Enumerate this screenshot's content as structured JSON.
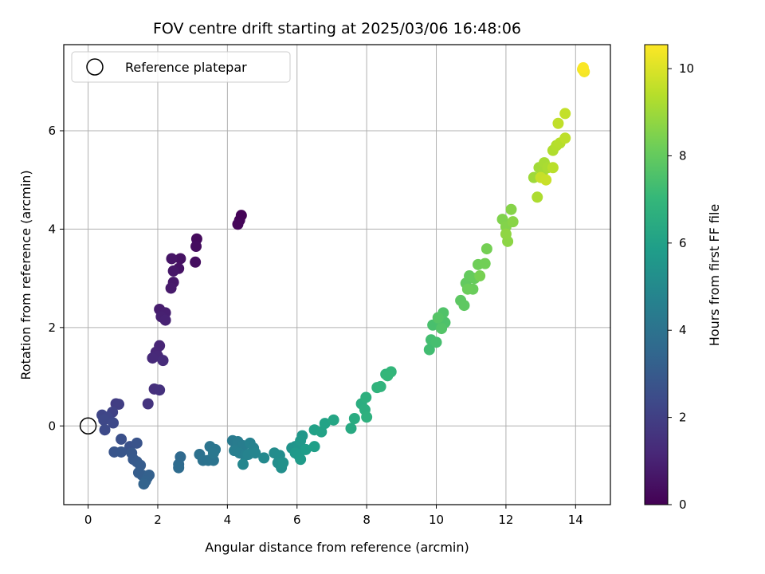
{
  "chart_data": {
    "type": "scatter",
    "title": "FOV centre drift starting at 2025/03/06 16:48:06",
    "xlabel": "Angular distance from reference (arcmin)",
    "ylabel": "Rotation from reference (arcmin)",
    "xlim": [
      -0.7,
      15.0
    ],
    "ylim": [
      -1.6,
      7.75
    ],
    "xticks": [
      0,
      2,
      4,
      6,
      8,
      10,
      12,
      14
    ],
    "yticks": [
      0,
      2,
      4,
      6
    ],
    "grid": true,
    "legend": {
      "placement": "top-left",
      "entries": [
        "Reference platepar"
      ]
    },
    "reference_point": {
      "x": 0,
      "y": 0,
      "label": "Reference platepar"
    },
    "colorbar": {
      "label": "Hours from first FF file",
      "range": [
        0,
        10.55
      ],
      "ticks": [
        0,
        2,
        4,
        6,
        8,
        10
      ],
      "colormap": "viridis"
    },
    "color_stops": [
      "#440154",
      "#482878",
      "#3e4989",
      "#31688e",
      "#26828e",
      "#1f9e89",
      "#35b779",
      "#6ece58",
      "#b5de2b",
      "#fde725"
    ],
    "points": [
      {
        "x": 4.4,
        "y": 4.28,
        "h": 0.05
      },
      {
        "x": 4.35,
        "y": 4.18,
        "h": 0.1
      },
      {
        "x": 4.3,
        "y": 4.1,
        "h": 0.15
      },
      {
        "x": 3.12,
        "y": 3.8,
        "h": 0.3
      },
      {
        "x": 3.1,
        "y": 3.65,
        "h": 0.35
      },
      {
        "x": 3.08,
        "y": 3.33,
        "h": 0.4
      },
      {
        "x": 2.65,
        "y": 3.4,
        "h": 0.5
      },
      {
        "x": 2.6,
        "y": 3.2,
        "h": 0.55
      },
      {
        "x": 2.4,
        "y": 3.4,
        "h": 0.6
      },
      {
        "x": 2.45,
        "y": 3.15,
        "h": 0.65
      },
      {
        "x": 2.45,
        "y": 2.92,
        "h": 0.7
      },
      {
        "x": 2.38,
        "y": 2.8,
        "h": 0.75
      },
      {
        "x": 2.05,
        "y": 2.37,
        "h": 0.85
      },
      {
        "x": 2.22,
        "y": 2.3,
        "h": 0.9
      },
      {
        "x": 2.1,
        "y": 2.22,
        "h": 0.95
      },
      {
        "x": 2.22,
        "y": 2.15,
        "h": 1.0
      },
      {
        "x": 2.05,
        "y": 1.63,
        "h": 1.1
      },
      {
        "x": 1.95,
        "y": 1.5,
        "h": 1.15
      },
      {
        "x": 2.0,
        "y": 1.42,
        "h": 1.2
      },
      {
        "x": 1.85,
        "y": 1.38,
        "h": 1.25
      },
      {
        "x": 2.15,
        "y": 1.33,
        "h": 1.3
      },
      {
        "x": 1.9,
        "y": 0.75,
        "h": 1.45
      },
      {
        "x": 2.05,
        "y": 0.73,
        "h": 1.5
      },
      {
        "x": 1.72,
        "y": 0.45,
        "h": 1.6
      },
      {
        "x": 0.8,
        "y": 0.45,
        "h": 1.9
      },
      {
        "x": 0.88,
        "y": 0.44,
        "h": 1.95
      },
      {
        "x": 0.7,
        "y": 0.28,
        "h": 2.1
      },
      {
        "x": 0.4,
        "y": 0.22,
        "h": 2.2
      },
      {
        "x": 0.55,
        "y": 0.18,
        "h": 2.25
      },
      {
        "x": 0.45,
        "y": 0.12,
        "h": 2.3
      },
      {
        "x": 0.72,
        "y": 0.06,
        "h": 2.35
      },
      {
        "x": 0.48,
        "y": -0.08,
        "h": 2.4
      },
      {
        "x": 0.95,
        "y": -0.27,
        "h": 2.6
      },
      {
        "x": 1.2,
        "y": -0.42,
        "h": 2.7
      },
      {
        "x": 1.4,
        "y": -0.35,
        "h": 2.75
      },
      {
        "x": 0.75,
        "y": -0.53,
        "h": 2.8
      },
      {
        "x": 0.95,
        "y": -0.53,
        "h": 2.85
      },
      {
        "x": 1.25,
        "y": -0.55,
        "h": 2.9
      },
      {
        "x": 1.3,
        "y": -0.68,
        "h": 2.95
      },
      {
        "x": 1.4,
        "y": -0.73,
        "h": 3.0
      },
      {
        "x": 1.5,
        "y": -0.8,
        "h": 3.05
      },
      {
        "x": 1.45,
        "y": -0.95,
        "h": 3.1
      },
      {
        "x": 1.55,
        "y": -1.0,
        "h": 3.15
      },
      {
        "x": 1.7,
        "y": -1.05,
        "h": 3.2
      },
      {
        "x": 1.75,
        "y": -1.0,
        "h": 3.25
      },
      {
        "x": 1.65,
        "y": -1.12,
        "h": 3.3
      },
      {
        "x": 1.6,
        "y": -1.18,
        "h": 3.35
      },
      {
        "x": 2.65,
        "y": -0.63,
        "h": 3.6
      },
      {
        "x": 2.6,
        "y": -0.78,
        "h": 3.65
      },
      {
        "x": 2.6,
        "y": -0.85,
        "h": 3.7
      },
      {
        "x": 3.2,
        "y": -0.58,
        "h": 3.9
      },
      {
        "x": 3.3,
        "y": -0.7,
        "h": 3.95
      },
      {
        "x": 3.45,
        "y": -0.7,
        "h": 4.0
      },
      {
        "x": 3.6,
        "y": -0.7,
        "h": 4.05
      },
      {
        "x": 3.5,
        "y": -0.42,
        "h": 4.1
      },
      {
        "x": 3.65,
        "y": -0.48,
        "h": 4.15
      },
      {
        "x": 3.6,
        "y": -0.55,
        "h": 4.2
      },
      {
        "x": 4.15,
        "y": -0.3,
        "h": 4.35
      },
      {
        "x": 4.3,
        "y": -0.32,
        "h": 4.4
      },
      {
        "x": 4.45,
        "y": -0.4,
        "h": 4.45
      },
      {
        "x": 4.2,
        "y": -0.5,
        "h": 4.5
      },
      {
        "x": 4.35,
        "y": -0.55,
        "h": 4.55
      },
      {
        "x": 4.5,
        "y": -0.6,
        "h": 4.6
      },
      {
        "x": 4.65,
        "y": -0.35,
        "h": 4.65
      },
      {
        "x": 4.75,
        "y": -0.45,
        "h": 4.7
      },
      {
        "x": 4.6,
        "y": -0.58,
        "h": 4.75
      },
      {
        "x": 4.8,
        "y": -0.55,
        "h": 4.8
      },
      {
        "x": 4.45,
        "y": -0.78,
        "h": 4.85
      },
      {
        "x": 5.05,
        "y": -0.65,
        "h": 5.0
      },
      {
        "x": 5.35,
        "y": -0.55,
        "h": 5.1
      },
      {
        "x": 5.5,
        "y": -0.6,
        "h": 5.15
      },
      {
        "x": 5.45,
        "y": -0.75,
        "h": 5.2
      },
      {
        "x": 5.55,
        "y": -0.85,
        "h": 5.25
      },
      {
        "x": 5.6,
        "y": -0.75,
        "h": 5.3
      },
      {
        "x": 5.85,
        "y": -0.45,
        "h": 5.4
      },
      {
        "x": 5.95,
        "y": -0.42,
        "h": 5.45
      },
      {
        "x": 6.05,
        "y": -0.4,
        "h": 5.5
      },
      {
        "x": 6.15,
        "y": -0.2,
        "h": 5.55
      },
      {
        "x": 6.1,
        "y": -0.3,
        "h": 5.6
      },
      {
        "x": 5.95,
        "y": -0.55,
        "h": 5.65
      },
      {
        "x": 6.05,
        "y": -0.6,
        "h": 5.7
      },
      {
        "x": 6.1,
        "y": -0.68,
        "h": 5.75
      },
      {
        "x": 6.25,
        "y": -0.48,
        "h": 5.8
      },
      {
        "x": 6.5,
        "y": -0.42,
        "h": 5.9
      },
      {
        "x": 6.5,
        "y": -0.08,
        "h": 6.0
      },
      {
        "x": 6.7,
        "y": -0.12,
        "h": 6.05
      },
      {
        "x": 6.8,
        "y": 0.05,
        "h": 6.1
      },
      {
        "x": 7.05,
        "y": 0.12,
        "h": 6.2
      },
      {
        "x": 7.55,
        "y": -0.05,
        "h": 6.4
      },
      {
        "x": 7.65,
        "y": 0.15,
        "h": 6.45
      },
      {
        "x": 7.85,
        "y": 0.45,
        "h": 6.55
      },
      {
        "x": 7.95,
        "y": 0.33,
        "h": 6.6
      },
      {
        "x": 7.98,
        "y": 0.58,
        "h": 6.65
      },
      {
        "x": 8.0,
        "y": 0.18,
        "h": 6.7
      },
      {
        "x": 8.3,
        "y": 0.78,
        "h": 6.8
      },
      {
        "x": 8.4,
        "y": 0.8,
        "h": 6.85
      },
      {
        "x": 8.55,
        "y": 1.05,
        "h": 6.9
      },
      {
        "x": 8.7,
        "y": 1.1,
        "h": 6.95
      },
      {
        "x": 8.6,
        "y": 1.02,
        "h": 7.0
      },
      {
        "x": 9.8,
        "y": 1.55,
        "h": 7.3
      },
      {
        "x": 9.85,
        "y": 1.75,
        "h": 7.35
      },
      {
        "x": 10.0,
        "y": 1.7,
        "h": 7.4
      },
      {
        "x": 9.9,
        "y": 2.05,
        "h": 7.45
      },
      {
        "x": 10.1,
        "y": 2.15,
        "h": 7.5
      },
      {
        "x": 10.25,
        "y": 2.1,
        "h": 7.55
      },
      {
        "x": 10.2,
        "y": 2.3,
        "h": 7.6
      },
      {
        "x": 10.15,
        "y": 1.98,
        "h": 7.65
      },
      {
        "x": 10.05,
        "y": 2.2,
        "h": 7.7
      },
      {
        "x": 10.7,
        "y": 2.55,
        "h": 7.85
      },
      {
        "x": 10.8,
        "y": 2.45,
        "h": 7.9
      },
      {
        "x": 10.85,
        "y": 2.9,
        "h": 7.95
      },
      {
        "x": 10.95,
        "y": 3.05,
        "h": 8.0
      },
      {
        "x": 11.1,
        "y": 3.0,
        "h": 8.05
      },
      {
        "x": 11.05,
        "y": 2.78,
        "h": 8.1
      },
      {
        "x": 10.9,
        "y": 2.78,
        "h": 8.15
      },
      {
        "x": 11.2,
        "y": 3.28,
        "h": 8.2
      },
      {
        "x": 11.4,
        "y": 3.3,
        "h": 8.25
      },
      {
        "x": 11.45,
        "y": 3.6,
        "h": 8.3
      },
      {
        "x": 11.25,
        "y": 3.05,
        "h": 8.35
      },
      {
        "x": 11.9,
        "y": 4.2,
        "h": 8.5
      },
      {
        "x": 12.0,
        "y": 4.05,
        "h": 8.55
      },
      {
        "x": 12.15,
        "y": 4.4,
        "h": 8.6
      },
      {
        "x": 12.2,
        "y": 4.15,
        "h": 8.65
      },
      {
        "x": 12.05,
        "y": 3.75,
        "h": 8.7
      },
      {
        "x": 12.0,
        "y": 3.9,
        "h": 8.75
      },
      {
        "x": 12.8,
        "y": 5.05,
        "h": 9.0
      },
      {
        "x": 12.95,
        "y": 5.25,
        "h": 9.05
      },
      {
        "x": 13.05,
        "y": 5.15,
        "h": 9.1
      },
      {
        "x": 13.1,
        "y": 5.35,
        "h": 9.15
      },
      {
        "x": 13.2,
        "y": 5.25,
        "h": 9.2
      },
      {
        "x": 12.9,
        "y": 4.65,
        "h": 9.25
      },
      {
        "x": 13.35,
        "y": 5.6,
        "h": 9.3
      },
      {
        "x": 13.45,
        "y": 5.7,
        "h": 9.35
      },
      {
        "x": 13.55,
        "y": 5.75,
        "h": 9.4
      },
      {
        "x": 13.35,
        "y": 5.25,
        "h": 9.45
      },
      {
        "x": 13.7,
        "y": 5.85,
        "h": 9.5
      },
      {
        "x": 13.5,
        "y": 6.15,
        "h": 9.55
      },
      {
        "x": 13.7,
        "y": 6.35,
        "h": 9.6
      },
      {
        "x": 13.0,
        "y": 5.05,
        "h": 9.65
      },
      {
        "x": 13.15,
        "y": 5.0,
        "h": 9.7
      },
      {
        "x": 14.2,
        "y": 7.25,
        "h": 10.3
      },
      {
        "x": 14.25,
        "y": 7.2,
        "h": 10.4
      },
      {
        "x": 14.22,
        "y": 7.28,
        "h": 10.5
      }
    ]
  }
}
